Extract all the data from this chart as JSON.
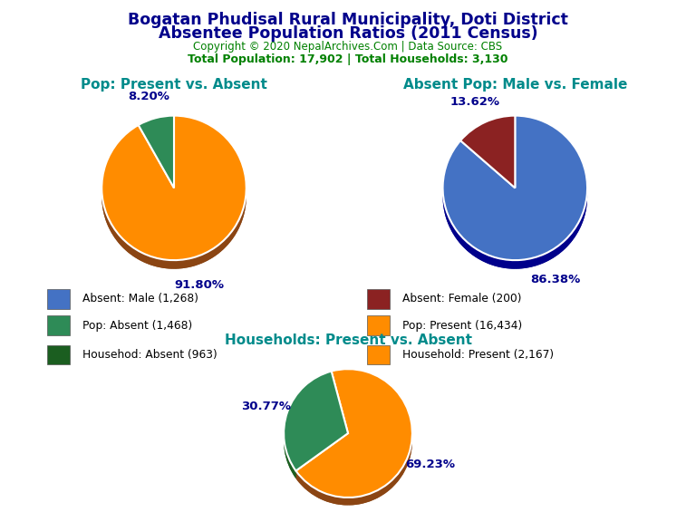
{
  "title_line1": "Bogatan Phudisal Rural Municipality, Doti District",
  "title_line2": "Absentee Population Ratios (2011 Census)",
  "title_color": "#00008B",
  "copyright_text": "Copyright © 2020 NepalArchives.Com | Data Source: CBS",
  "copyright_color": "#008000",
  "stats_text": "Total Population: 17,902 | Total Households: 3,130",
  "stats_color": "#008000",
  "pie1_title": "Pop: Present vs. Absent",
  "pie1_title_color": "#008B8B",
  "pie1_values": [
    91.8,
    8.2
  ],
  "pie1_colors": [
    "#FF8C00",
    "#2E8B57"
  ],
  "pie1_shadow_colors": [
    "#8B4513",
    "#1B5E20"
  ],
  "pie1_labels": [
    "91.80%",
    "8.20%"
  ],
  "pie1_startangle": 90,
  "pie2_title": "Absent Pop: Male vs. Female",
  "pie2_title_color": "#008B8B",
  "pie2_values": [
    86.38,
    13.62
  ],
  "pie2_colors": [
    "#4472C4",
    "#8B2222"
  ],
  "pie2_shadow_colors": [
    "#00008B",
    "#5C0000"
  ],
  "pie2_labels": [
    "86.38%",
    "13.62%"
  ],
  "pie2_startangle": 90,
  "pie3_title": "Households: Present vs. Absent",
  "pie3_title_color": "#008B8B",
  "pie3_values": [
    69.23,
    30.77
  ],
  "pie3_colors": [
    "#FF8C00",
    "#2E8B57"
  ],
  "pie3_shadow_colors": [
    "#8B4513",
    "#1B5E20"
  ],
  "pie3_labels": [
    "69.23%",
    "30.77%"
  ],
  "pie3_startangle": 105,
  "legend_items": [
    {
      "label": "Absent: Male (1,268)",
      "color": "#4472C4"
    },
    {
      "label": "Absent: Female (200)",
      "color": "#8B2222"
    },
    {
      "label": "Pop: Absent (1,468)",
      "color": "#2E8B57"
    },
    {
      "label": "Pop: Present (16,434)",
      "color": "#FF8C00"
    },
    {
      "label": "Househod: Absent (963)",
      "color": "#1B5E20"
    },
    {
      "label": "Household: Present (2,167)",
      "color": "#FF8C00"
    }
  ],
  "label_color": "#00008B",
  "background_color": "#FFFFFF"
}
